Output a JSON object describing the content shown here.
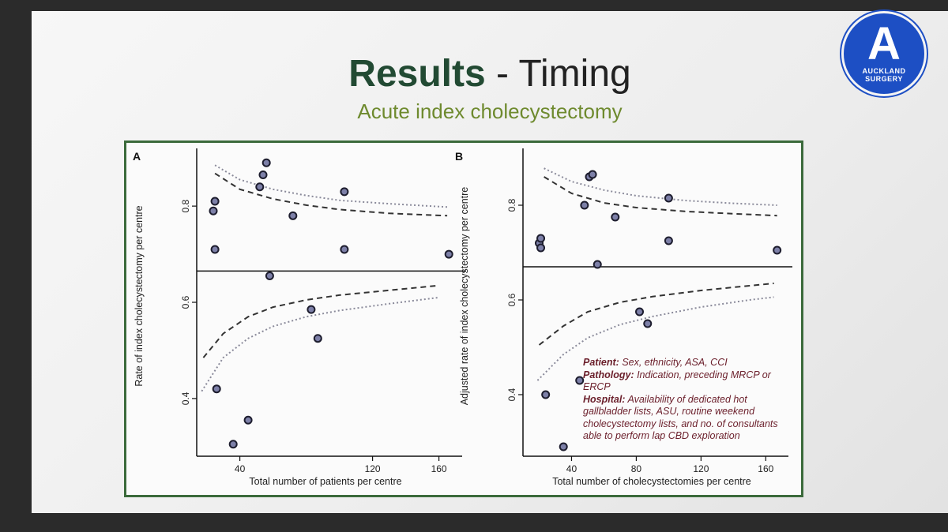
{
  "slide": {
    "title_strong": "Results",
    "title_rest": " - Timing",
    "subtitle": "Acute index cholecystectomy",
    "logo": {
      "letter": "A",
      "line1": "AUCKLAND",
      "line2": "SURGERY",
      "color": "#1d4fc4"
    },
    "note": {
      "patient_label": "Patient:",
      "patient_text": " Sex, ethnicity, ASA, CCI",
      "pathology_label": "Pathology:",
      "pathology_text": " Indication, preceding MRCP or ERCP",
      "hospital_label": "Hospital:",
      "hospital_text": " Availability of dedicated hot gallbladder lists, ASU, routine weekend cholecystectomy lists, and no. of consultants able to perform lap CBD exploration"
    }
  },
  "chart_data": [
    {
      "type": "scatter",
      "panel": "A",
      "xlabel": "Total number of patients per centre",
      "ylabel": "Rate of index cholecystectomy per centre",
      "xlim": [
        14,
        174
      ],
      "ylim": [
        0.28,
        0.92
      ],
      "xticks": [
        40,
        120,
        160
      ],
      "yticks": [
        0.4,
        0.6,
        0.8
      ],
      "reference_line": 0.665,
      "points": [
        {
          "x": 24,
          "y": 0.79
        },
        {
          "x": 25,
          "y": 0.81
        },
        {
          "x": 25,
          "y": 0.71
        },
        {
          "x": 26,
          "y": 0.42
        },
        {
          "x": 36,
          "y": 0.305
        },
        {
          "x": 45,
          "y": 0.355
        },
        {
          "x": 52,
          "y": 0.84
        },
        {
          "x": 54,
          "y": 0.865
        },
        {
          "x": 56,
          "y": 0.89
        },
        {
          "x": 58,
          "y": 0.655
        },
        {
          "x": 72,
          "y": 0.78
        },
        {
          "x": 83,
          "y": 0.585
        },
        {
          "x": 87,
          "y": 0.525
        },
        {
          "x": 103,
          "y": 0.83
        },
        {
          "x": 103,
          "y": 0.71
        },
        {
          "x": 166,
          "y": 0.7
        }
      ],
      "upper_dashed": [
        [
          25,
          0.868
        ],
        [
          40,
          0.835
        ],
        [
          60,
          0.815
        ],
        [
          80,
          0.802
        ],
        [
          100,
          0.793
        ],
        [
          130,
          0.785
        ],
        [
          165,
          0.78
        ]
      ],
      "upper_dotted": [
        [
          25,
          0.885
        ],
        [
          40,
          0.855
        ],
        [
          60,
          0.835
        ],
        [
          80,
          0.822
        ],
        [
          100,
          0.812
        ],
        [
          130,
          0.805
        ],
        [
          165,
          0.798
        ]
      ],
      "lower_dashed": [
        [
          18,
          0.485
        ],
        [
          30,
          0.535
        ],
        [
          45,
          0.57
        ],
        [
          60,
          0.59
        ],
        [
          80,
          0.605
        ],
        [
          100,
          0.615
        ],
        [
          130,
          0.625
        ],
        [
          160,
          0.635
        ]
      ],
      "lower_dotted": [
        [
          17,
          0.415
        ],
        [
          30,
          0.485
        ],
        [
          45,
          0.525
        ],
        [
          60,
          0.55
        ],
        [
          80,
          0.57
        ],
        [
          100,
          0.583
        ],
        [
          130,
          0.597
        ],
        [
          160,
          0.61
        ]
      ]
    },
    {
      "type": "scatter",
      "panel": "B",
      "xlabel": "Total number of cholecystectomies per centre",
      "ylabel": "Adjusted rate of index cholecystectomy per centre",
      "xlim": [
        10,
        174
      ],
      "ylim": [
        0.27,
        0.92
      ],
      "xticks": [
        40,
        80,
        120,
        160
      ],
      "yticks": [
        0.4,
        0.6,
        0.8
      ],
      "reference_line": 0.67,
      "points": [
        {
          "x": 20,
          "y": 0.72
        },
        {
          "x": 21,
          "y": 0.73
        },
        {
          "x": 21,
          "y": 0.71
        },
        {
          "x": 24,
          "y": 0.4
        },
        {
          "x": 35,
          "y": 0.29
        },
        {
          "x": 45,
          "y": 0.43
        },
        {
          "x": 48,
          "y": 0.8
        },
        {
          "x": 51,
          "y": 0.86
        },
        {
          "x": 53,
          "y": 0.865
        },
        {
          "x": 56,
          "y": 0.675
        },
        {
          "x": 67,
          "y": 0.775
        },
        {
          "x": 82,
          "y": 0.575
        },
        {
          "x": 87,
          "y": 0.55
        },
        {
          "x": 100,
          "y": 0.815
        },
        {
          "x": 100,
          "y": 0.725
        },
        {
          "x": 167,
          "y": 0.705
        }
      ],
      "upper_dashed": [
        [
          23,
          0.86
        ],
        [
          40,
          0.825
        ],
        [
          60,
          0.805
        ],
        [
          80,
          0.795
        ],
        [
          110,
          0.787
        ],
        [
          140,
          0.782
        ],
        [
          167,
          0.778
        ]
      ],
      "upper_dotted": [
        [
          23,
          0.878
        ],
        [
          40,
          0.85
        ],
        [
          60,
          0.832
        ],
        [
          80,
          0.82
        ],
        [
          110,
          0.81
        ],
        [
          140,
          0.804
        ],
        [
          167,
          0.8
        ]
      ],
      "lower_dashed": [
        [
          20,
          0.505
        ],
        [
          35,
          0.545
        ],
        [
          50,
          0.575
        ],
        [
          70,
          0.595
        ],
        [
          90,
          0.607
        ],
        [
          120,
          0.62
        ],
        [
          150,
          0.63
        ],
        [
          165,
          0.635
        ]
      ],
      "lower_dotted": [
        [
          19,
          0.43
        ],
        [
          35,
          0.485
        ],
        [
          50,
          0.52
        ],
        [
          70,
          0.548
        ],
        [
          90,
          0.565
        ],
        [
          120,
          0.585
        ],
        [
          150,
          0.6
        ],
        [
          165,
          0.606
        ]
      ]
    }
  ]
}
